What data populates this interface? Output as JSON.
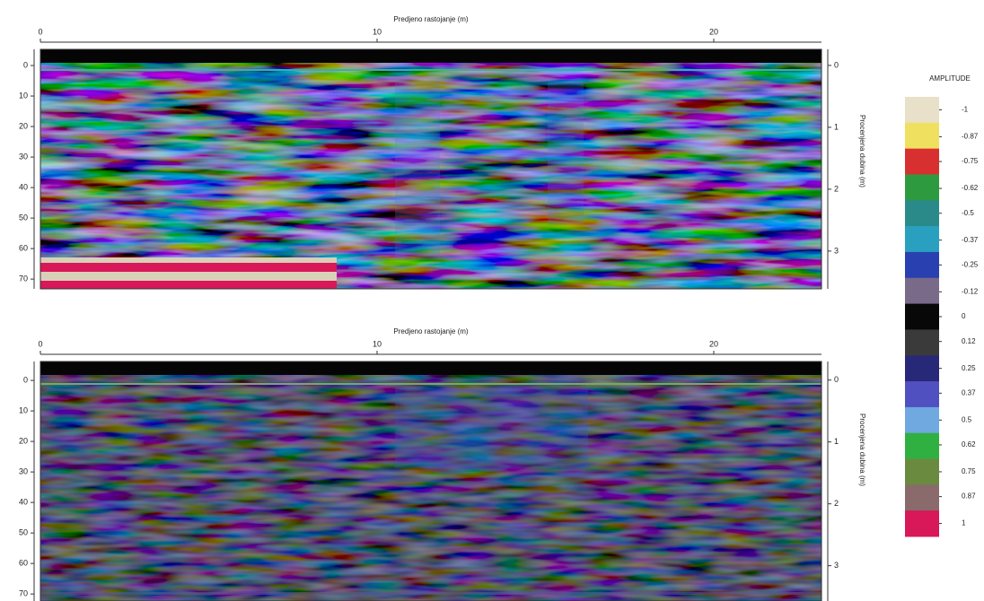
{
  "chart_data": [
    {
      "type": "heatmap",
      "x_label": "Predjeno rastojanje (m)",
      "y2_label": "Procenjena dubina (m)",
      "xlim": [
        0,
        23.2
      ],
      "xticks": [
        0,
        10,
        20
      ],
      "ylim": [
        -5.3,
        73.2
      ],
      "yticks": [
        0,
        10,
        20,
        30,
        40,
        50,
        60,
        70
      ],
      "y_inverted": true,
      "y2lim": [
        -0.26,
        3.61
      ],
      "y2ticks": [
        0,
        1,
        2,
        3
      ]
    },
    {
      "type": "heatmap",
      "x_label": "Predjeno rastojanje (m)",
      "y2_label": "Procenjena dubina (m)",
      "xlim": [
        0,
        23.2
      ],
      "xticks": [
        0,
        10,
        20
      ],
      "ylim": [
        -6.2,
        72.3
      ],
      "yticks": [
        0,
        10,
        20,
        30,
        40,
        50,
        60,
        70
      ],
      "y_inverted": true,
      "y2lim": [
        -0.3,
        3.57
      ],
      "y2ticks": [
        0,
        1,
        2,
        3
      ]
    }
  ],
  "colorbar": {
    "title": "AMPLITUDE",
    "ticks": [
      -1,
      -0.87,
      -0.75,
      -0.62,
      -0.5,
      -0.37,
      -0.25,
      -0.12,
      0,
      0.12,
      0.25,
      0.37,
      0.5,
      0.62,
      0.75,
      0.87,
      1
    ],
    "colors": [
      "#e8e0c8",
      "#f0e060",
      "#d83030",
      "#2e9a40",
      "#2a8a8a",
      "#2aa0c0",
      "#2840b0",
      "#7a6a8a",
      "#080808",
      "#3a3a3a",
      "#282878",
      "#5050c0",
      "#70a8e0",
      "#30b040",
      "#6a8a40",
      "#8a6a6a",
      "#d81858"
    ]
  }
}
